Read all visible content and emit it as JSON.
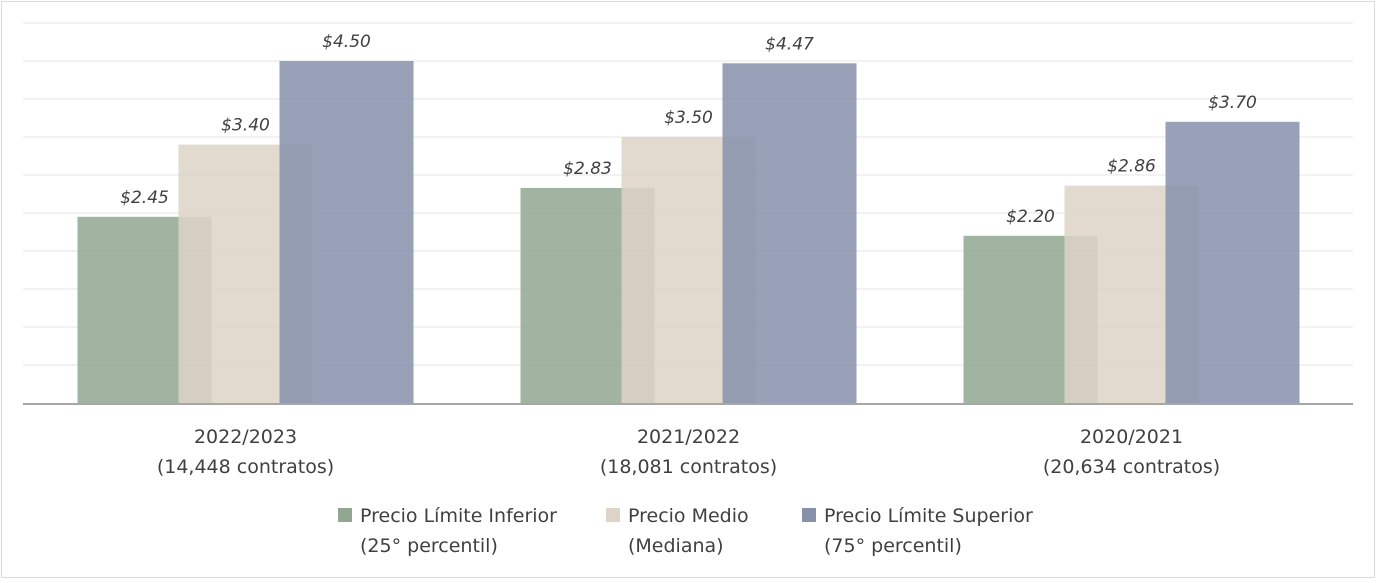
{
  "chart_data": {
    "type": "bar",
    "categories": [
      [
        "2022/2023",
        "(14,448 contratos)"
      ],
      [
        "2021/2022",
        "(18,081 contratos)"
      ],
      [
        "2020/2021",
        "(20,634 contratos)"
      ]
    ],
    "series": [
      {
        "name": [
          "Precio Límite Inferior",
          "(25° percentil)"
        ],
        "values": [
          2.45,
          2.83,
          2.2
        ],
        "labels": [
          "$2.45",
          "$2.83",
          "$2.20"
        ],
        "color": "#91a792"
      },
      {
        "name": [
          "Precio Medio",
          "(Mediana)"
        ],
        "values": [
          3.4,
          3.5,
          2.86
        ],
        "labels": [
          "$3.40",
          "$3.50",
          "$2.86"
        ],
        "color": "#ddd3c6"
      },
      {
        "name": [
          "Precio Límite Superior",
          "(75° percentil)"
        ],
        "values": [
          4.5,
          4.47,
          3.7
        ],
        "labels": [
          "$4.50",
          "$4.47",
          "$3.70"
        ],
        "color": "#8690ab"
      }
    ],
    "ylim": [
      0,
      5
    ],
    "grid": true,
    "legend": "bottom",
    "overlapping_bars": true
  }
}
